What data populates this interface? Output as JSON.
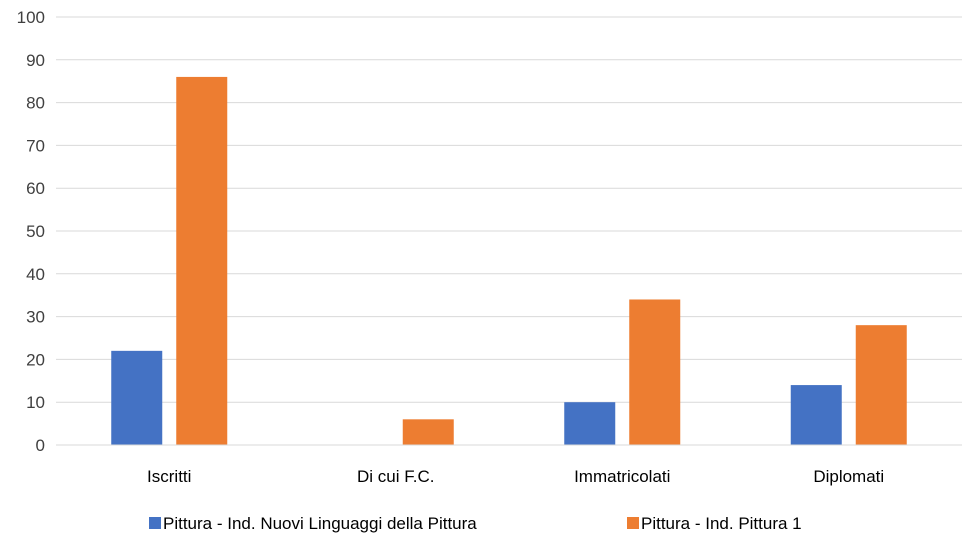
{
  "chart_data": {
    "type": "bar",
    "categories": [
      "Iscritti",
      "Di cui F.C.",
      "Immatricolati",
      "Diplomati"
    ],
    "series": [
      {
        "name": "Pittura - Ind. Nuovi Linguaggi della Pittura",
        "values": [
          22,
          0,
          10,
          14
        ],
        "color": "#4472C4"
      },
      {
        "name": "Pittura - Ind. Pittura 1",
        "values": [
          86,
          6,
          34,
          28
        ],
        "color": "#ED7D31"
      }
    ],
    "yticks": [
      "0",
      "10",
      "20",
      "30",
      "40",
      "50",
      "60",
      "70",
      "80",
      "90",
      "100"
    ],
    "ylim": [
      0,
      100
    ],
    "grid": true,
    "legend_position": "bottom"
  }
}
